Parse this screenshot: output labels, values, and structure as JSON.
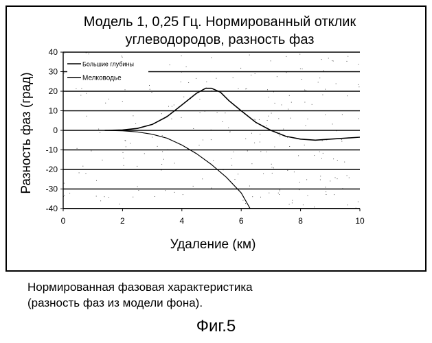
{
  "chart_data": {
    "type": "line",
    "title": [
      "Модель 1, 0,25 Гц. Нормированный отклик",
      "углеводородов, разность фаз"
    ],
    "xlabel": "Удаление (км)",
    "ylabel": "Разность фаз (град)",
    "xlim": [
      0,
      10
    ],
    "ylim": [
      -40,
      40
    ],
    "xticks": [
      "0",
      "2",
      "4",
      "6",
      "8",
      "10"
    ],
    "yticks": [
      "40",
      "30",
      "20",
      "10",
      "0",
      "-10",
      "-20",
      "-30",
      "-40"
    ],
    "grid": "horizontal",
    "legend_position": "top-left",
    "series": [
      {
        "name": "Большие глубины",
        "x": [
          1.4,
          2.0,
          2.5,
          3.0,
          3.5,
          4.0,
          4.5,
          4.8,
          5.0,
          5.3,
          5.6,
          6.0,
          6.5,
          7.0,
          7.5,
          8.0,
          8.5,
          9.0,
          9.5,
          10.0
        ],
        "y": [
          0,
          0.2,
          1,
          3,
          7,
          13,
          19,
          21.5,
          21.5,
          19.5,
          15,
          10,
          4,
          0,
          -3,
          -4.5,
          -5,
          -4.5,
          -4,
          -3.5
        ]
      },
      {
        "name": "Мелководье",
        "x": [
          1.4,
          2.0,
          2.5,
          3.0,
          3.5,
          4.0,
          4.5,
          5.0,
          5.5,
          6.0,
          6.3
        ],
        "y": [
          0,
          -0.2,
          -0.8,
          -2,
          -4,
          -7.5,
          -12,
          -17.5,
          -24,
          -32,
          -40
        ]
      }
    ]
  },
  "caption": [
    "Нормированная фазовая характеристика",
    "(разность фаз из модели фона)."
  ],
  "figure_label": "Фиг.5"
}
